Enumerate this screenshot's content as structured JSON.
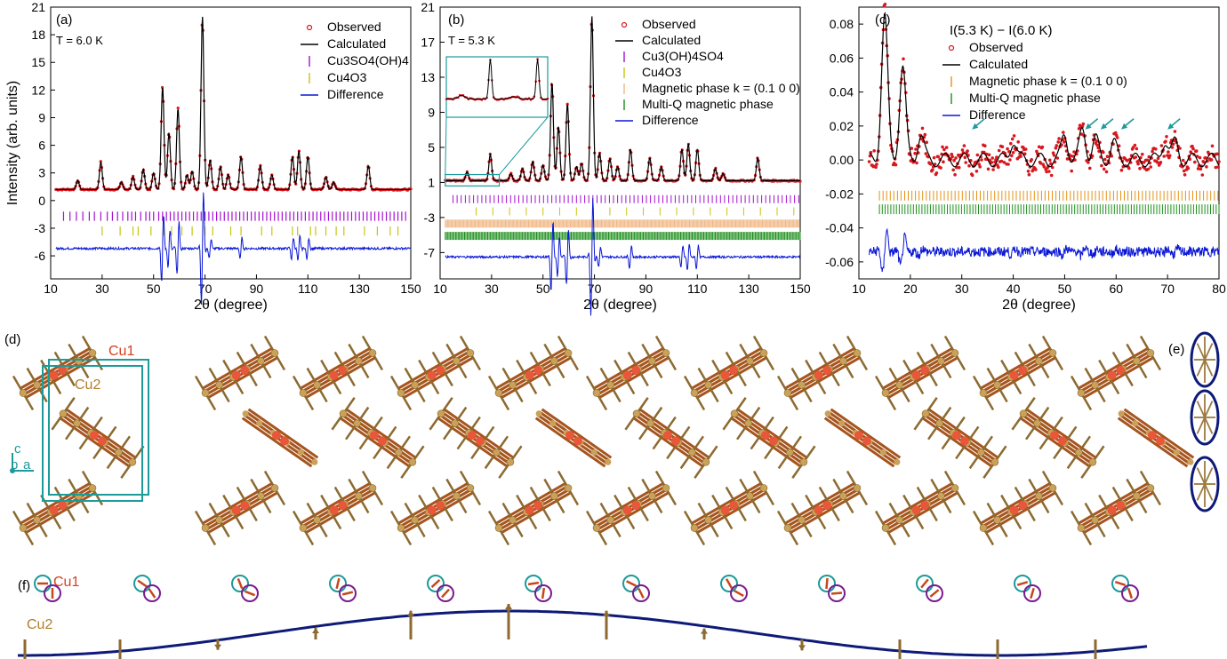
{
  "colors": {
    "observed": "#d9171e",
    "calculated": "#000000",
    "difference": "#0a17d6",
    "cu3so4": "#a50fd2",
    "cu4o3": "#c8c40f",
    "mag_k": "#f0b784",
    "mag_k_c": "#e39218",
    "multiq": "#1b8f1b",
    "teal": "#1d9a9a",
    "cu1": "#e8573a",
    "cu2": "#c9a15a",
    "navy": "#0e1a78",
    "purple": "#7a1b8f"
  },
  "panels": {
    "a": {
      "letter": "(a)",
      "temp": "T = 6.0 K",
      "legend": [
        "Observed",
        "Calculated",
        "Cu3SO4(OH)4",
        "Cu4O3",
        "Difference"
      ]
    },
    "b": {
      "letter": "(b)",
      "temp": "T = 5.3 K",
      "legend": [
        "Observed",
        "Calculated",
        "Cu3(OH)4SO4",
        "Cu4O3",
        "Magnetic phase k = (0.1 0 0)",
        "Multi-Q magnetic phase",
        "Difference"
      ]
    },
    "c": {
      "letter": "(c)",
      "title": "I(5.3 K) − I(6.0 K)",
      "legend": [
        "Observed",
        "Calculated",
        "Magnetic phase k = (0.1 0 0)",
        "Multi-Q magnetic phase",
        "Difference"
      ]
    },
    "d": {
      "letter": "(d)",
      "cu1": "Cu1",
      "cu2": "Cu2",
      "axes": [
        "c",
        "b",
        "a"
      ]
    },
    "e": {
      "letter": "(e)"
    },
    "f": {
      "letter": "(f)",
      "cu1": "Cu1",
      "cu2": "Cu2"
    }
  },
  "chart_data": [
    {
      "type": "line",
      "panel": "a",
      "xlabel": "2θ (degree)",
      "ylabel": "Intensity (arb. units)",
      "xlim": [
        10,
        150
      ],
      "ylim": [
        -8.5,
        21
      ],
      "xticks": [
        10,
        30,
        50,
        70,
        90,
        110,
        130,
        150
      ],
      "yticks": [
        -6,
        -3,
        0,
        3,
        6,
        9,
        12,
        15,
        18,
        21
      ],
      "baseline": 1.2,
      "diff_level": -5.2,
      "peaks": [
        [
          20.5,
          1.0
        ],
        [
          29.5,
          3.0
        ],
        [
          37.5,
          0.8
        ],
        [
          42,
          1.4
        ],
        [
          46,
          2.2
        ],
        [
          50,
          1.8
        ],
        [
          53.5,
          11.2
        ],
        [
          56,
          6.2
        ],
        [
          59.5,
          8.8
        ],
        [
          63,
          1.6
        ],
        [
          65,
          2.0
        ],
        [
          69,
          18.8
        ],
        [
          72,
          3.2
        ],
        [
          76,
          2.5
        ],
        [
          79,
          1.6
        ],
        [
          84,
          3.6
        ],
        [
          91.5,
          2.6
        ],
        [
          96,
          1.6
        ],
        [
          104,
          3.6
        ],
        [
          106.5,
          4.2
        ],
        [
          110,
          3.6
        ],
        [
          117,
          1.4
        ],
        [
          120,
          0.8
        ],
        [
          133.5,
          2.6
        ]
      ],
      "ticks_cu3so4": [
        15,
        17.5,
        20,
        22.5,
        25,
        27,
        29.5,
        32,
        34,
        36,
        38,
        40,
        41.5,
        43,
        45,
        47,
        48.5,
        50,
        52,
        53.5,
        55,
        56.5,
        58,
        59.5,
        61,
        62.5,
        64,
        65.5,
        67,
        68.5,
        70,
        71.5,
        73,
        74.5,
        76,
        77.5,
        79,
        80.5,
        82,
        83.5,
        85,
        86.5,
        88,
        89.5,
        91,
        92.5,
        94,
        95.5,
        97,
        98.5,
        100,
        101.5,
        103,
        104.5,
        106,
        107.5,
        109,
        110.5,
        112,
        113.5,
        115,
        116.5,
        118,
        119.5,
        121,
        122.5,
        124,
        125.5,
        127,
        128.5,
        130,
        131.5,
        133,
        134.5,
        136,
        137.5,
        139,
        140.5,
        142,
        143.5,
        145,
        146.5,
        148
      ],
      "ticks_cu4o3": [
        30,
        37,
        42,
        44,
        49,
        54,
        57,
        61,
        65,
        70,
        73,
        80,
        84,
        92,
        96,
        104,
        106,
        111,
        113,
        117,
        121,
        124,
        132,
        137,
        142,
        145
      ],
      "series": [
        {
          "name": "Observed"
        },
        {
          "name": "Calculated"
        },
        {
          "name": "Cu3SO4(OH)4"
        },
        {
          "name": "Cu4O3"
        },
        {
          "name": "Difference"
        }
      ]
    },
    {
      "type": "line",
      "panel": "b",
      "xlabel": "2θ (degree)",
      "xlim": [
        10,
        150
      ],
      "ylim": [
        -10,
        21
      ],
      "xticks": [
        10,
        30,
        50,
        70,
        90,
        110,
        130,
        150
      ],
      "yticks": [
        -7,
        -3,
        1,
        5,
        9,
        13,
        17,
        21
      ],
      "baseline": 1.2,
      "diff_level": -7.5,
      "peaks": [
        [
          20.5,
          1.0
        ],
        [
          29.5,
          3.0
        ],
        [
          37.5,
          0.8
        ],
        [
          42,
          1.4
        ],
        [
          46,
          2.2
        ],
        [
          50,
          1.8
        ],
        [
          53.5,
          11.2
        ],
        [
          56,
          6.2
        ],
        [
          59.5,
          8.8
        ],
        [
          63,
          1.6
        ],
        [
          65,
          2.0
        ],
        [
          69,
          18.8
        ],
        [
          72,
          3.2
        ],
        [
          76,
          2.5
        ],
        [
          79,
          1.6
        ],
        [
          84,
          3.6
        ],
        [
          91.5,
          2.6
        ],
        [
          96,
          1.6
        ],
        [
          104,
          3.6
        ],
        [
          106.5,
          4.2
        ],
        [
          110,
          3.6
        ],
        [
          117,
          1.4
        ],
        [
          120,
          0.8
        ],
        [
          133.5,
          2.6
        ]
      ],
      "tick_rows": [
        {
          "name": "Cu3(OH)4SO4",
          "y": -0.9,
          "color": "#a50fd2",
          "start": 15,
          "end": 150,
          "step": 1.6
        },
        {
          "name": "Cu4O3",
          "y": -2.3,
          "color": "#c8c40f",
          "start": 24,
          "end": 148,
          "step": 6.5
        },
        {
          "name": "Magnetic phase k = (0.1 0 0)",
          "y": -3.7,
          "color": "#f0b784",
          "start": 12,
          "end": 150,
          "step": 0.45
        },
        {
          "name": "Multi-Q magnetic phase",
          "y": -5.1,
          "color": "#1b8f1b",
          "start": 12,
          "end": 150,
          "step": 0.5
        }
      ],
      "inset": {
        "xlim": [
          12,
          35
        ],
        "ylim": [
          0,
          2.5
        ]
      },
      "series": [
        {
          "name": "Observed"
        },
        {
          "name": "Calculated"
        },
        {
          "name": "Cu3(OH)4SO4"
        },
        {
          "name": "Cu4O3"
        },
        {
          "name": "Magnetic phase k = (0.1 0 0)"
        },
        {
          "name": "Multi-Q magnetic phase"
        },
        {
          "name": "Difference"
        }
      ]
    },
    {
      "type": "line",
      "panel": "c",
      "title": "I(5.3 K) − I(6.0 K)",
      "xlabel": "2θ (degree)",
      "xlim": [
        10,
        80
      ],
      "ylim": [
        -0.07,
        0.09
      ],
      "xticks": [
        10,
        20,
        30,
        40,
        50,
        60,
        70,
        80
      ],
      "yticks": [
        -0.06,
        -0.04,
        -0.02,
        0.0,
        0.02,
        0.04,
        0.06,
        0.08
      ],
      "diff_level": -0.054,
      "peaks": [
        [
          15,
          0.085
        ],
        [
          18.5,
          0.055
        ],
        [
          22,
          0.015
        ],
        [
          40,
          0.012
        ],
        [
          50,
          0.015
        ],
        [
          53.5,
          0.018
        ],
        [
          56,
          0.012
        ],
        [
          59.5,
          0.01
        ],
        [
          69.5,
          0.012
        ],
        [
          71.5,
          0.01
        ]
      ],
      "arrows_x": [
        32,
        54,
        57,
        61,
        70
      ],
      "tick_rows": [
        {
          "name": "Magnetic phase k = (0.1 0 0)",
          "y": -0.021,
          "color": "#e39218",
          "start": 14,
          "end": 80,
          "step": 0.7
        },
        {
          "name": "Multi-Q magnetic phase",
          "y": -0.029,
          "color": "#1b8f1b",
          "start": 14,
          "end": 80,
          "step": 0.55
        }
      ],
      "series": [
        {
          "name": "Observed"
        },
        {
          "name": "Calculated"
        },
        {
          "name": "Magnetic phase k = (0.1 0 0)"
        },
        {
          "name": "Multi-Q magnetic phase"
        },
        {
          "name": "Difference"
        }
      ]
    }
  ]
}
